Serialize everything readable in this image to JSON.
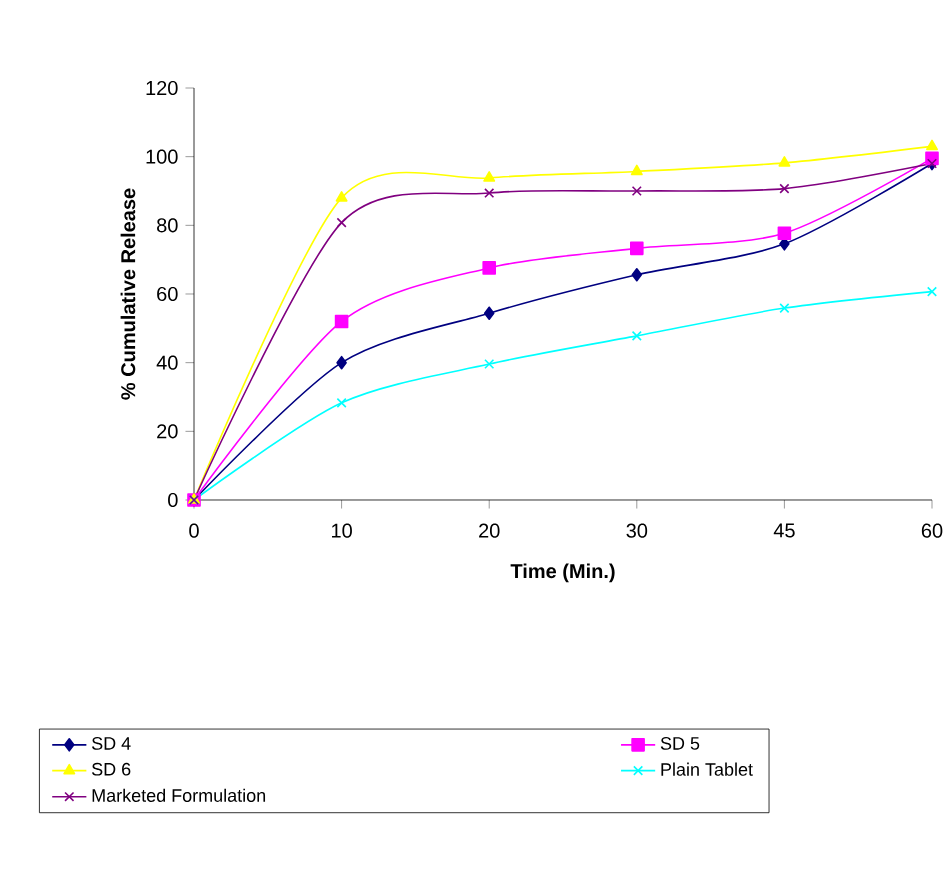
{
  "chart_data": {
    "type": "line",
    "xlabel": "Time (Min.)",
    "ylabel": "% Cumulative Release",
    "categories": [
      "0",
      "10",
      "20",
      "30",
      "45",
      "60"
    ],
    "ylim": [
      0,
      120
    ],
    "yticks": [
      0,
      20,
      40,
      60,
      80,
      100,
      120
    ],
    "grid": false,
    "legend": "bottom",
    "line_style": "solid",
    "series": [
      {
        "name": "SD 4",
        "color": "#000080",
        "marker": "diamond",
        "values": [
          0,
          40,
          54.4,
          65.6,
          74.6,
          98
        ]
      },
      {
        "name": "SD 5",
        "color": "#ff00ff",
        "marker": "square",
        "values": [
          0,
          52,
          67.6,
          73.3,
          77.7,
          99.5
        ]
      },
      {
        "name": "SD 6",
        "color": "#ffff00",
        "marker": "triangle",
        "values": [
          0,
          88,
          93.8,
          95.7,
          98.2,
          103
        ]
      },
      {
        "name": "Plain Tablet",
        "color": "#00ffff",
        "marker": "cross",
        "values": [
          0,
          28.3,
          39.6,
          47.8,
          55.9,
          60.7
        ]
      },
      {
        "name": "Marketed Formulation",
        "color": "#800080",
        "marker": "cross",
        "values": [
          0,
          80.8,
          89.4,
          90,
          90.7,
          98
        ]
      }
    ]
  }
}
